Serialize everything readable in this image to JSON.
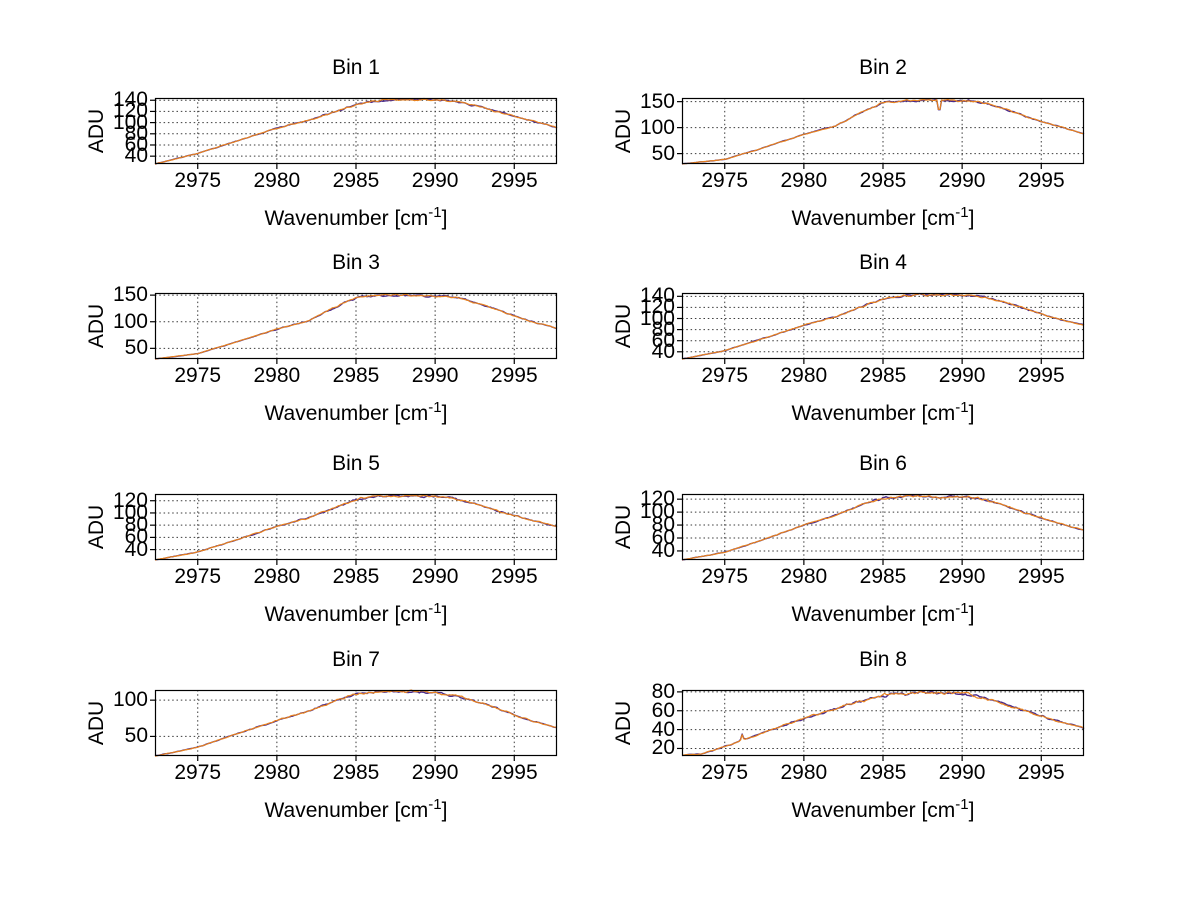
{
  "figure": {
    "background": "#ffffff"
  },
  "chart_data": {
    "type": "line",
    "common": {
      "ylabel": "ADU",
      "xlabel_prefix": "Wavenumber [cm",
      "xlabel_sup": "-1",
      "xlabel_suffix": "]",
      "xlim": [
        2972.3,
        2997.7
      ],
      "xticks": [
        2975,
        2980,
        2985,
        2990,
        2995
      ],
      "grid": true,
      "legend": "none",
      "noise": {
        "base": 0.7,
        "peak": 2.3
      },
      "colors": {
        "trace_orange": "#e8821e",
        "trace_dark": "#4a2a8a",
        "grid": "#3a3a3a",
        "axis": "#000000",
        "text": "#000000"
      },
      "series": [
        {
          "name": "trace-dark",
          "color": "#4a2a8a"
        },
        {
          "name": "trace-orange",
          "color": "#e8821e"
        }
      ]
    },
    "bins": [
      {
        "title": "Bin 1",
        "ylim": [
          26,
          144
        ],
        "yticks": [
          40,
          60,
          80,
          100,
          120,
          140
        ],
        "envelope": [
          [
            2972.3,
            26
          ],
          [
            2975,
            45
          ],
          [
            2977,
            63
          ],
          [
            2980,
            90
          ],
          [
            2982,
            104
          ],
          [
            2984,
            122
          ],
          [
            2985,
            132
          ],
          [
            2986,
            138
          ],
          [
            2987.5,
            141
          ],
          [
            2989,
            141
          ],
          [
            2990.5,
            140
          ],
          [
            2991.5,
            137
          ],
          [
            2993,
            127
          ],
          [
            2994.5,
            115
          ],
          [
            2996,
            104
          ],
          [
            2997.7,
            91
          ]
        ],
        "spikes": []
      },
      {
        "title": "Bin 2",
        "ylim": [
          30,
          157
        ],
        "yticks": [
          50,
          100,
          150
        ],
        "envelope": [
          [
            2972.3,
            30
          ],
          [
            2975,
            39
          ],
          [
            2977,
            57
          ],
          [
            2980,
            87
          ],
          [
            2982,
            103
          ],
          [
            2984,
            135
          ],
          [
            2985,
            148
          ],
          [
            2986.5,
            152
          ],
          [
            2988,
            153
          ],
          [
            2989.5,
            152
          ],
          [
            2991,
            150
          ],
          [
            2992,
            143
          ],
          [
            2993.5,
            127
          ],
          [
            2995,
            112
          ],
          [
            2996.5,
            99
          ],
          [
            2997.7,
            88
          ]
        ],
        "spikes": [
          {
            "x": 2988.55,
            "dy": -30,
            "w": 0.13
          }
        ]
      },
      {
        "title": "Bin 3",
        "ylim": [
          30,
          154
        ],
        "yticks": [
          50,
          100,
          150
        ],
        "envelope": [
          [
            2972.3,
            30
          ],
          [
            2975,
            40
          ],
          [
            2977,
            58
          ],
          [
            2980,
            86
          ],
          [
            2982,
            102
          ],
          [
            2984,
            132
          ],
          [
            2985,
            145
          ],
          [
            2986,
            149
          ],
          [
            2987.5,
            150
          ],
          [
            2989,
            149
          ],
          [
            2990.5,
            148
          ],
          [
            2991.5,
            145
          ],
          [
            2993,
            132
          ],
          [
            2994.5,
            116
          ],
          [
            2996,
            101
          ],
          [
            2997.7,
            88
          ]
        ],
        "spikes": []
      },
      {
        "title": "Bin 4",
        "ylim": [
          27,
          146
        ],
        "yticks": [
          40,
          60,
          80,
          100,
          120,
          140
        ],
        "envelope": [
          [
            2972.3,
            27
          ],
          [
            2975,
            42
          ],
          [
            2977,
            60
          ],
          [
            2980,
            88
          ],
          [
            2982,
            103
          ],
          [
            2984,
            125
          ],
          [
            2985,
            135
          ],
          [
            2986,
            140
          ],
          [
            2987.5,
            143
          ],
          [
            2989,
            143
          ],
          [
            2990.5,
            141
          ],
          [
            2991.5,
            138
          ],
          [
            2993,
            127
          ],
          [
            2994.5,
            113
          ],
          [
            2996,
            100
          ],
          [
            2997.7,
            88
          ]
        ],
        "spikes": []
      },
      {
        "title": "Bin 5",
        "ylim": [
          23,
          131
        ],
        "yticks": [
          40,
          60,
          80,
          100,
          120
        ],
        "envelope": [
          [
            2972.3,
            23
          ],
          [
            2975,
            36
          ],
          [
            2977,
            52
          ],
          [
            2980,
            78
          ],
          [
            2982,
            92
          ],
          [
            2984,
            112
          ],
          [
            2985,
            122
          ],
          [
            2986,
            126
          ],
          [
            2987,
            128
          ],
          [
            2988.5,
            128
          ],
          [
            2990,
            127
          ],
          [
            2991,
            125
          ],
          [
            2992.5,
            116
          ],
          [
            2994,
            103
          ],
          [
            2995.5,
            92
          ],
          [
            2997.7,
            78
          ]
        ],
        "spikes": []
      },
      {
        "title": "Bin 6",
        "ylim": [
          26,
          128
        ],
        "yticks": [
          40,
          60,
          80,
          100,
          120
        ],
        "envelope": [
          [
            2972.3,
            26
          ],
          [
            2975,
            38
          ],
          [
            2977,
            54
          ],
          [
            2980,
            80
          ],
          [
            2982,
            95
          ],
          [
            2984,
            115
          ],
          [
            2985,
            121
          ],
          [
            2986,
            124
          ],
          [
            2987,
            125
          ],
          [
            2988.5,
            123
          ],
          [
            2990,
            124
          ],
          [
            2991,
            122
          ],
          [
            2992.5,
            112
          ],
          [
            2994,
            99
          ],
          [
            2995.5,
            87
          ],
          [
            2997.7,
            72
          ]
        ],
        "spikes": []
      },
      {
        "title": "Bin 7",
        "ylim": [
          23,
          114
        ],
        "yticks": [
          50,
          100
        ],
        "envelope": [
          [
            2972.3,
            23
          ],
          [
            2975,
            35
          ],
          [
            2977,
            50
          ],
          [
            2980,
            72
          ],
          [
            2982,
            85
          ],
          [
            2984,
            102
          ],
          [
            2985,
            108
          ],
          [
            2986,
            111
          ],
          [
            2987.5,
            112
          ],
          [
            2989,
            112
          ],
          [
            2990,
            110
          ],
          [
            2991.5,
            105
          ],
          [
            2993,
            96
          ],
          [
            2994.5,
            84
          ],
          [
            2996,
            72
          ],
          [
            2997.7,
            62
          ]
        ],
        "spikes": []
      },
      {
        "title": "Bin 8",
        "ylim": [
          12,
          82
        ],
        "yticks": [
          20,
          40,
          60,
          80
        ],
        "envelope": [
          [
            2972.3,
            13
          ],
          [
            2973.5,
            14
          ],
          [
            2975,
            22
          ],
          [
            2977,
            34
          ],
          [
            2980,
            52
          ],
          [
            2982,
            62
          ],
          [
            2984,
            72
          ],
          [
            2985,
            76
          ],
          [
            2986,
            78
          ],
          [
            2987.5,
            79
          ],
          [
            2989,
            79
          ],
          [
            2990.5,
            77
          ],
          [
            2991.5,
            73
          ],
          [
            2993,
            65
          ],
          [
            2994.5,
            57
          ],
          [
            2996,
            49
          ],
          [
            2997.7,
            42
          ]
        ],
        "spikes": [
          {
            "x": 2976.1,
            "dy": 6,
            "w": 0.12
          }
        ]
      }
    ]
  }
}
